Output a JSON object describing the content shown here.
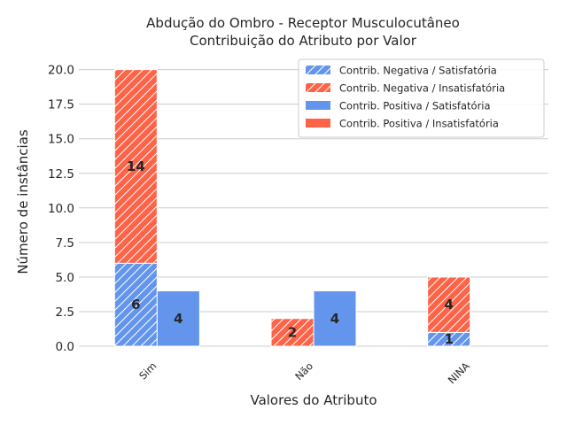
{
  "chart_data": {
    "type": "bar",
    "title": "Abdução do Ombro - Receptor Musculocutâneo",
    "subtitle": "Contribuição do Atributo por Valor",
    "xlabel": "Valores do Atributo",
    "ylabel": "Número de instâncias",
    "categories": [
      "Sim",
      "Não",
      "NINA"
    ],
    "ylim": [
      0,
      21
    ],
    "yticks": [
      "0.0",
      "2.5",
      "5.0",
      "7.5",
      "10.0",
      "12.5",
      "15.0",
      "17.5",
      "20.0"
    ],
    "grid": true,
    "legend_position": "top-right",
    "stacks": [
      {
        "stack": "Contrib. Negativa",
        "series": [
          {
            "name": "Contrib. Negativa / Satisfatória",
            "values": [
              6,
              0,
              1
            ],
            "color": "#6495ED",
            "hatched": true
          },
          {
            "name": "Contrib. Negativa / Insatisfatória",
            "values": [
              14,
              2,
              4
            ],
            "color": "#FF6347",
            "hatched": true
          }
        ]
      },
      {
        "stack": "Contrib. Positiva",
        "series": [
          {
            "name": "Contrib. Positiva / Satisfatória",
            "values": [
              4,
              4,
              0
            ],
            "color": "#6495ED",
            "hatched": false
          },
          {
            "name": "Contrib. Positiva / Insatisfatória",
            "values": [
              0,
              0,
              0
            ],
            "color": "#FF6347",
            "hatched": false
          }
        ]
      }
    ],
    "legend": [
      "Contrib. Negativa / Satisfatória",
      "Contrib. Negativa / Insatisfatória",
      "Contrib. Positiva / Satisfatória",
      "Contrib. Positiva / Insatisfatória"
    ]
  }
}
